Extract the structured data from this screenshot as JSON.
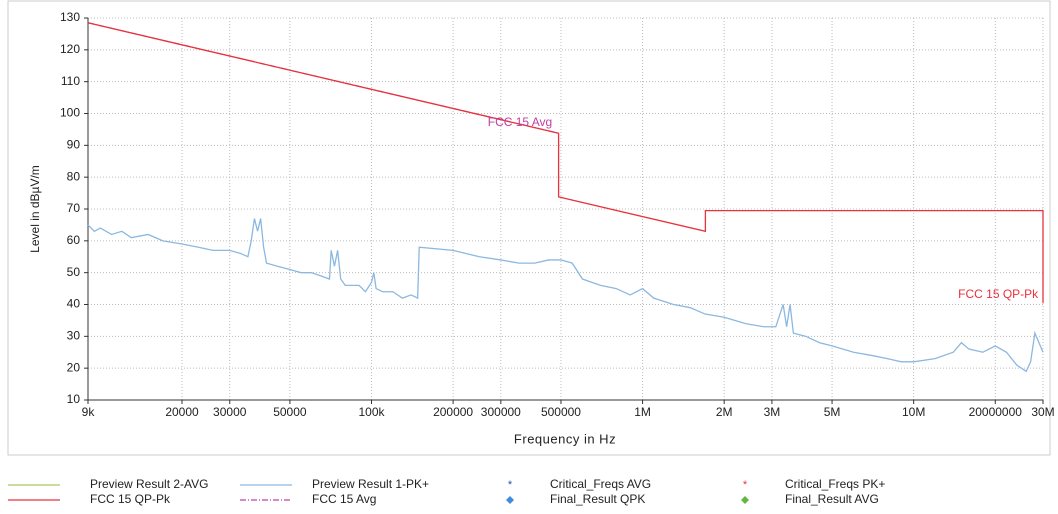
{
  "chart_data": {
    "type": "line",
    "xlabel": "Frequency in Hz",
    "ylabel": "Level in dBµV/m",
    "xscale": "log",
    "grid": true,
    "xlim": [
      9000,
      30000000
    ],
    "ylim": [
      10,
      130
    ],
    "xticks": [
      {
        "value": 9000,
        "label": "9k"
      },
      20000,
      30000,
      50000,
      {
        "value": 100000,
        "label": "100k"
      },
      200000,
      300000,
      500000,
      {
        "value": 1000000,
        "label": "1M"
      },
      {
        "value": 2000000,
        "label": "2M"
      },
      {
        "value": 3000000,
        "label": "3M"
      },
      {
        "value": 5000000,
        "label": "5M"
      },
      {
        "value": 10000000,
        "label": "10M"
      },
      20000000,
      {
        "value": 30000000,
        "label": "30M"
      }
    ],
    "yticks": [
      10,
      20,
      30,
      40,
      50,
      60,
      70,
      80,
      90,
      100,
      110,
      120,
      130
    ],
    "series": [
      {
        "name": "Preview Result 2-AVG",
        "color": "#a8c860",
        "marker": "line",
        "x": [],
        "values": []
      },
      {
        "name": "FCC 15 QP-Pk",
        "color": "#e8323c",
        "marker": "line",
        "x": [
          9000,
          490000,
          490000,
          1705000,
          1705000,
          30000000,
          30000000
        ],
        "values": [
          128.5,
          93.8,
          73.8,
          63,
          69.5,
          69.5,
          40.5
        ]
      },
      {
        "name": "Preview Result 1-PK+",
        "color": "#8cb8e0",
        "marker": "line",
        "x": [
          9000,
          9500,
          10000,
          11000,
          12000,
          13000,
          15000,
          17000,
          20000,
          23000,
          26000,
          30000,
          33000,
          35000,
          36000,
          37000,
          38000,
          39000,
          40000,
          41000,
          45000,
          50000,
          55000,
          60000,
          65000,
          70000,
          71000,
          73000,
          75000,
          77000,
          80000,
          90000,
          95000,
          100000,
          102000,
          104000,
          110000,
          120000,
          130000,
          140000,
          148000,
          150000,
          200000,
          250000,
          300000,
          350000,
          400000,
          450000,
          500000,
          550000,
          600000,
          700000,
          800000,
          900000,
          1000000,
          1100000,
          1300000,
          1500000,
          1700000,
          2000000,
          2400000,
          2800000,
          3100000,
          3300000,
          3400000,
          3500000,
          3600000,
          4000000,
          4500000,
          5000000,
          6000000,
          7000000,
          8000000,
          9000000,
          10000000,
          12000000,
          14000000,
          15000000,
          16000000,
          18000000,
          20000000,
          22000000,
          24000000,
          26000000,
          27000000,
          28000000,
          29000000,
          30000000
        ],
        "values": [
          65,
          63,
          64,
          62,
          63,
          61,
          62,
          60,
          59,
          58,
          57,
          57,
          56,
          55,
          60,
          67,
          63,
          67,
          58,
          53,
          52,
          51,
          50,
          50,
          49,
          48,
          57,
          52,
          57,
          48,
          46,
          46,
          44,
          47,
          50,
          45,
          44,
          44,
          42,
          43,
          42,
          58,
          57,
          55,
          54,
          53,
          53,
          54,
          54,
          53,
          48,
          46,
          45,
          43,
          45,
          42,
          40,
          39,
          37,
          36,
          34,
          33,
          33,
          40,
          33,
          40,
          31,
          30,
          28,
          27,
          25,
          24,
          23,
          22,
          22,
          23,
          25,
          28,
          26,
          25,
          27,
          25,
          21,
          19,
          22,
          31,
          28,
          25
        ]
      },
      {
        "name": "FCC 15 Avg",
        "color": "#c040a0",
        "marker": "dashdot",
        "x": [
          9000,
          490000
        ],
        "values": [
          128.5,
          93.8
        ]
      },
      {
        "name": "Critical_Freqs AVG",
        "color": "#2050b0",
        "marker": "asterisk",
        "x": [],
        "values": []
      },
      {
        "name": "Final_Result QPK",
        "color": "#3c8ce0",
        "marker": "diamond",
        "x": [],
        "values": []
      },
      {
        "name": "Critical_Freqs PK+",
        "color": "#e8323c",
        "marker": "asterisk",
        "x": [],
        "values": []
      },
      {
        "name": "Final_Result AVG",
        "color": "#60b840",
        "marker": "diamond",
        "x": [],
        "values": []
      }
    ],
    "annotations": [
      {
        "text": "FCC 15 Avg",
        "x": 353000,
        "y": 97,
        "color": "#c040a0"
      },
      {
        "text": "FCC 15 QP-Pk",
        "x": 20500000,
        "y": 43,
        "color": "#e8323c"
      }
    ]
  }
}
